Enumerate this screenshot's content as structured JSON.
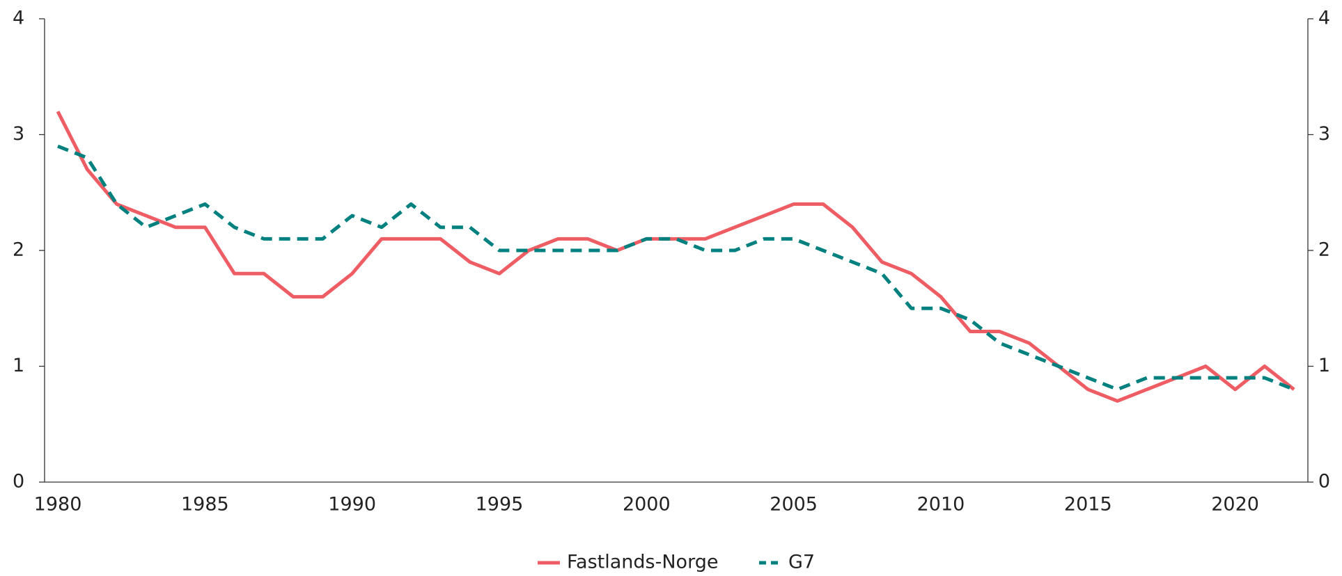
{
  "chart_data": {
    "type": "line",
    "x": [
      1980,
      1981,
      1982,
      1983,
      1984,
      1985,
      1986,
      1987,
      1988,
      1989,
      1990,
      1991,
      1992,
      1993,
      1994,
      1995,
      1996,
      1997,
      1998,
      1999,
      2000,
      2001,
      2002,
      2003,
      2004,
      2005,
      2006,
      2007,
      2008,
      2009,
      2010,
      2011,
      2012,
      2013,
      2014,
      2015,
      2016,
      2017,
      2018,
      2019,
      2020,
      2021,
      2022
    ],
    "series": [
      {
        "name": "Fastlands-Norge",
        "color": "#ed5d63",
        "dash": "solid",
        "values": [
          3.2,
          2.7,
          2.4,
          2.3,
          2.2,
          2.2,
          1.8,
          1.8,
          1.6,
          1.6,
          1.8,
          2.1,
          2.1,
          2.1,
          1.9,
          1.8,
          2.0,
          2.1,
          2.1,
          2.0,
          2.1,
          2.1,
          2.1,
          2.2,
          2.3,
          2.4,
          2.4,
          2.2,
          1.9,
          1.8,
          1.6,
          1.3,
          1.3,
          1.2,
          1.0,
          0.8,
          0.7,
          0.8,
          0.9,
          1.0,
          0.8,
          1.0,
          0.8
        ]
      },
      {
        "name": "G7",
        "color": "#00807f",
        "dash": "dashed",
        "values": [
          2.9,
          2.8,
          2.4,
          2.2,
          2.3,
          2.4,
          2.2,
          2.1,
          2.1,
          2.1,
          2.3,
          2.2,
          2.4,
          2.2,
          2.2,
          2.0,
          2.0,
          2.0,
          2.0,
          2.0,
          2.1,
          2.1,
          2.0,
          2.0,
          2.1,
          2.1,
          2.0,
          1.9,
          1.8,
          1.5,
          1.5,
          1.4,
          1.2,
          1.1,
          1.0,
          0.9,
          0.8,
          0.9,
          0.9,
          0.9,
          0.9,
          0.9,
          0.8
        ]
      }
    ],
    "xlim": [
      1979.55,
      2022.47
    ],
    "xticks": [
      1980,
      1985,
      1990,
      1995,
      2000,
      2005,
      2010,
      2015,
      2020
    ],
    "ylim": [
      0,
      4
    ],
    "yticks": [
      0,
      1,
      2,
      3,
      4
    ],
    "y2lim": [
      0,
      4
    ],
    "y2ticks": [
      0,
      1,
      2,
      3,
      4
    ],
    "legend": "bottom"
  }
}
